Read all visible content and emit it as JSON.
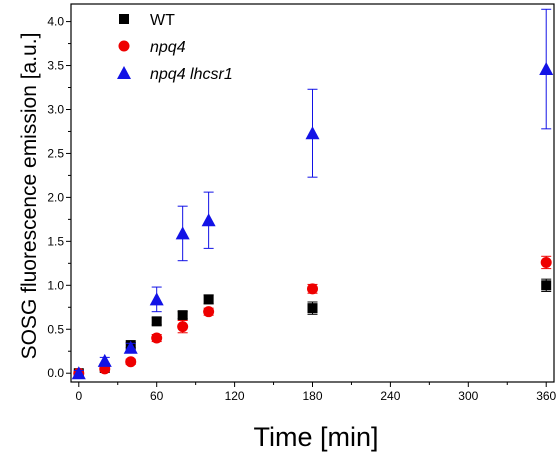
{
  "chart_data": {
    "type": "scatter",
    "title": "",
    "xlabel": "Time [min]",
    "ylabel": "SOSG  fluorescence emission [a.u.]",
    "xlim": [
      -6,
      366
    ],
    "ylim": [
      -0.1,
      4.2
    ],
    "xticks": [
      0,
      60,
      120,
      180,
      240,
      300,
      360
    ],
    "yticks": [
      0.0,
      0.5,
      1.0,
      1.5,
      2.0,
      2.5,
      3.0,
      3.5,
      4.0
    ],
    "ytick_labels": [
      "0.0",
      "0.5",
      "1.0",
      "1.5",
      "2.0",
      "2.5",
      "3.0",
      "3.5",
      "4.0"
    ],
    "legend_position": "top-left",
    "grid": false,
    "series": [
      {
        "name": "WT",
        "italic": false,
        "marker": "square",
        "color": "#000000",
        "x": [
          0,
          20,
          40,
          60,
          80,
          100,
          180,
          360
        ],
        "y": [
          0.0,
          0.06,
          0.32,
          0.59,
          0.66,
          0.84,
          0.74,
          1.0
        ],
        "err": [
          0.02,
          0.02,
          0.03,
          0.04,
          0.04,
          0.05,
          0.07,
          0.07
        ]
      },
      {
        "name": "npq4",
        "italic": true,
        "marker": "circle",
        "color": "#ee0000",
        "x": [
          0,
          20,
          40,
          60,
          80,
          100,
          180,
          360
        ],
        "y": [
          0.0,
          0.05,
          0.13,
          0.4,
          0.53,
          0.7,
          0.96,
          1.26
        ],
        "err": [
          0.02,
          0.02,
          0.03,
          0.04,
          0.07,
          0.04,
          0.05,
          0.07
        ]
      },
      {
        "name": "npq4 lhcsr1",
        "italic": true,
        "marker": "triangle",
        "color": "#1212e6",
        "x": [
          0,
          20,
          40,
          60,
          80,
          100,
          180,
          360
        ],
        "y": [
          0.0,
          0.14,
          0.29,
          0.84,
          1.59,
          1.74,
          2.73,
          3.46
        ],
        "err": [
          0.03,
          0.04,
          0.05,
          0.14,
          0.31,
          0.32,
          0.5,
          0.68
        ]
      }
    ]
  }
}
